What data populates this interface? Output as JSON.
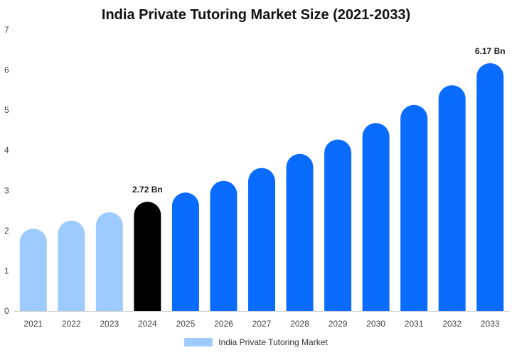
{
  "chart_data": {
    "type": "bar",
    "title": "India Private Tutoring Market Size (2021-2033)",
    "categories": [
      "2021",
      "2022",
      "2023",
      "2024",
      "2025",
      "2026",
      "2027",
      "2028",
      "2029",
      "2030",
      "2031",
      "2032",
      "2033"
    ],
    "series": [
      {
        "name": "India Private Tutoring Market",
        "values": [
          2.05,
          2.25,
          2.46,
          2.72,
          2.95,
          3.24,
          3.56,
          3.91,
          4.27,
          4.68,
          5.13,
          5.62,
          6.17
        ]
      }
    ],
    "yticks": [
      "0",
      "1",
      "2",
      "3",
      "4",
      "5",
      "6",
      "7"
    ],
    "ylim": [
      0,
      7
    ],
    "data_labels": [
      {
        "category": "2024",
        "text": "2.72 Bn"
      },
      {
        "category": "2033",
        "text": "6.17 Bn"
      }
    ],
    "bar_colors": [
      "#9ecbff",
      "#9ecbff",
      "#9ecbff",
      "#000000",
      "#0a6cff",
      "#0a6cff",
      "#0a6cff",
      "#0a6cff",
      "#0a6cff",
      "#0a6cff",
      "#0a6cff",
      "#0a6cff",
      "#0a6cff"
    ],
    "legend_color": "#9ecbff",
    "axis_color": "#cccccc",
    "grid": false,
    "legend_position": "bottom-center"
  }
}
